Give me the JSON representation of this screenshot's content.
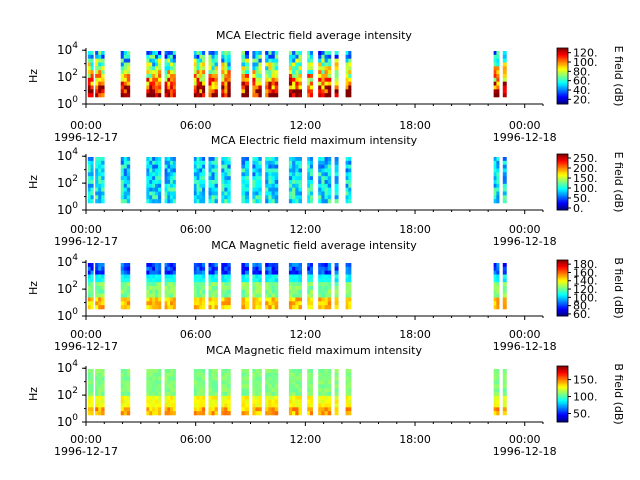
{
  "chart_data": [
    {
      "type": "heatmap",
      "title": "MCA  Electric field average intensity",
      "ylabel": "Hz",
      "y_scale": "log",
      "y_tick_labels": [
        {
          "base": "10",
          "exp": "0"
        },
        {
          "base": "10",
          "exp": "2"
        },
        {
          "base": "10",
          "exp": "4"
        }
      ],
      "x_tick_labels": [
        "00:00",
        "06:00",
        "12:00",
        "18:00",
        "00:00"
      ],
      "x_date_labels": [
        "1996-12-17",
        "1996-12-18"
      ],
      "colorbar_label": "E field (dB)",
      "colorbar_ticks": [
        "20.",
        "40.",
        "60.",
        "80.",
        "100.",
        "120."
      ],
      "colorbar_values": [
        20,
        40,
        60,
        80,
        100,
        120
      ],
      "colorbar_range": [
        10,
        130
      ],
      "data_segments_hours": [
        [
          0.1,
          0.4
        ],
        [
          0.5,
          1.0
        ],
        [
          1.9,
          2.4
        ],
        [
          3.3,
          4.1
        ],
        [
          4.3,
          4.9
        ],
        [
          5.9,
          6.5
        ],
        [
          6.7,
          7.2
        ],
        [
          7.4,
          7.9
        ],
        [
          8.5,
          8.9
        ],
        [
          9.1,
          9.6
        ],
        [
          9.8,
          10.5
        ],
        [
          11.1,
          11.8
        ],
        [
          12.1,
          12.4
        ],
        [
          12.7,
          13.4
        ],
        [
          13.6,
          13.8
        ],
        [
          14.2,
          14.5
        ],
        [
          22.3,
          22.6
        ],
        [
          22.8,
          23.0
        ]
      ],
      "palette": "hot"
    },
    {
      "type": "heatmap",
      "title": "MCA  Electric field maximum intensity",
      "ylabel": "Hz",
      "y_scale": "log",
      "y_tick_labels": [
        {
          "base": "10",
          "exp": "0"
        },
        {
          "base": "10",
          "exp": "2"
        },
        {
          "base": "10",
          "exp": "4"
        }
      ],
      "x_tick_labels": [
        "00:00",
        "06:00",
        "12:00",
        "18:00",
        "00:00"
      ],
      "x_date_labels": [
        "1996-12-17",
        "1996-12-18"
      ],
      "colorbar_label": "E field (dB)",
      "colorbar_ticks": [
        "0.",
        "50.",
        "100.",
        "150.",
        "200.",
        "250."
      ],
      "colorbar_values": [
        0,
        50,
        100,
        150,
        200,
        250
      ],
      "colorbar_range": [
        -10,
        270
      ],
      "data_segments_hours": [
        [
          0.1,
          0.4
        ],
        [
          0.5,
          1.0
        ],
        [
          1.9,
          2.4
        ],
        [
          3.3,
          4.1
        ],
        [
          4.3,
          4.9
        ],
        [
          5.9,
          6.5
        ],
        [
          6.7,
          7.2
        ],
        [
          7.4,
          7.9
        ],
        [
          8.5,
          8.9
        ],
        [
          9.1,
          9.6
        ],
        [
          9.8,
          10.5
        ],
        [
          11.1,
          11.8
        ],
        [
          12.1,
          12.4
        ],
        [
          12.7,
          13.4
        ],
        [
          13.6,
          13.8
        ],
        [
          14.2,
          14.5
        ],
        [
          22.3,
          22.6
        ],
        [
          22.8,
          23.0
        ]
      ],
      "palette": "cool"
    },
    {
      "type": "heatmap",
      "title": "MCA  Magnetic field average intensity",
      "ylabel": "Hz",
      "y_scale": "log",
      "y_tick_labels": [
        {
          "base": "10",
          "exp": "0"
        },
        {
          "base": "10",
          "exp": "2"
        },
        {
          "base": "10",
          "exp": "4"
        }
      ],
      "x_tick_labels": [
        "00:00",
        "06:00",
        "12:00",
        "18:00",
        "00:00"
      ],
      "x_date_labels": [
        "1996-12-17",
        "1996-12-18"
      ],
      "colorbar_label": "B field (dB)",
      "colorbar_ticks": [
        "60.",
        "80.",
        "100.",
        "120.",
        "140.",
        "160.",
        "180."
      ],
      "colorbar_values": [
        60,
        80,
        100,
        120,
        140,
        160,
        180
      ],
      "colorbar_range": [
        55,
        190
      ],
      "data_segments_hours": [
        [
          0.1,
          0.4
        ],
        [
          0.5,
          1.0
        ],
        [
          1.9,
          2.4
        ],
        [
          3.3,
          4.1
        ],
        [
          4.3,
          4.9
        ],
        [
          5.9,
          6.5
        ],
        [
          6.7,
          7.2
        ],
        [
          7.4,
          7.9
        ],
        [
          8.5,
          8.9
        ],
        [
          9.1,
          9.6
        ],
        [
          9.8,
          10.5
        ],
        [
          11.1,
          11.8
        ],
        [
          12.1,
          12.4
        ],
        [
          12.7,
          13.4
        ],
        [
          13.6,
          13.8
        ],
        [
          14.2,
          14.5
        ],
        [
          22.3,
          22.6
        ],
        [
          22.8,
          23.0
        ]
      ],
      "palette": "band"
    },
    {
      "type": "heatmap",
      "title": "MCA  Magnetic field maximum intensity",
      "ylabel": "Hz",
      "y_scale": "log",
      "y_tick_labels": [
        {
          "base": "10",
          "exp": "0"
        },
        {
          "base": "10",
          "exp": "2"
        },
        {
          "base": "10",
          "exp": "4"
        }
      ],
      "x_tick_labels": [
        "00:00",
        "06:00",
        "12:00",
        "18:00",
        "00:00"
      ],
      "x_date_labels": [
        "1996-12-17",
        "1996-12-18"
      ],
      "colorbar_label": "B field (dB)",
      "colorbar_ticks": [
        "50.",
        "100.",
        "150."
      ],
      "colorbar_values": [
        50,
        100,
        150
      ],
      "colorbar_range": [
        25,
        190
      ],
      "data_segments_hours": [
        [
          0.1,
          0.4
        ],
        [
          0.5,
          1.0
        ],
        [
          1.9,
          2.4
        ],
        [
          3.3,
          4.1
        ],
        [
          4.3,
          4.9
        ],
        [
          5.9,
          6.5
        ],
        [
          6.7,
          7.2
        ],
        [
          7.4,
          7.9
        ],
        [
          8.5,
          8.9
        ],
        [
          9.1,
          9.6
        ],
        [
          9.8,
          10.5
        ],
        [
          11.1,
          11.8
        ],
        [
          12.1,
          12.4
        ],
        [
          12.7,
          13.4
        ],
        [
          13.6,
          13.8
        ],
        [
          14.2,
          14.5
        ],
        [
          22.3,
          22.6
        ],
        [
          22.8,
          23.0
        ]
      ],
      "palette": "bandmax"
    }
  ]
}
